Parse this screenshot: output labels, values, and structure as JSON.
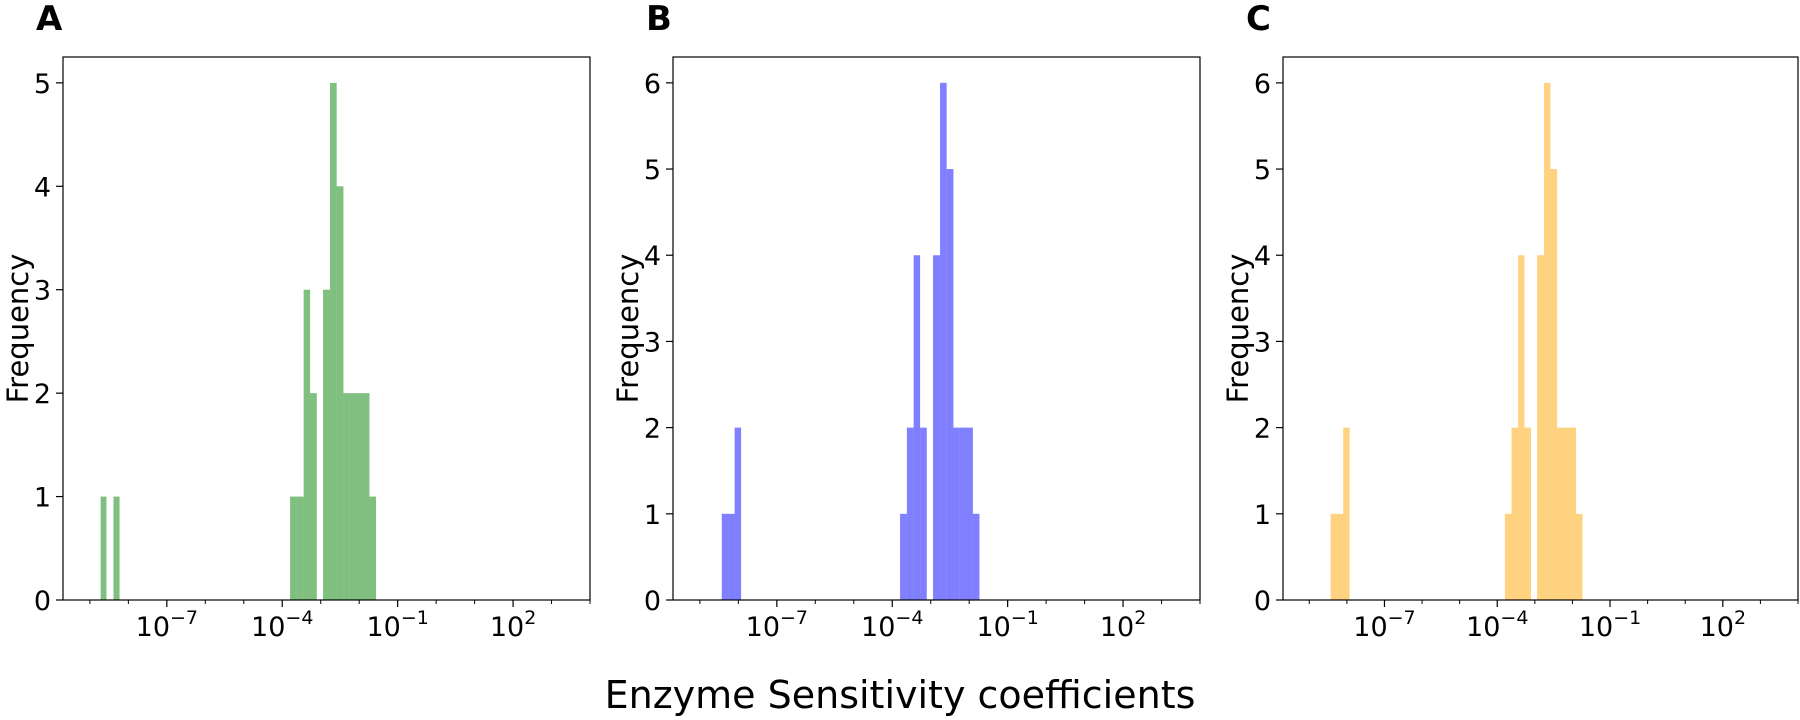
{
  "figure": {
    "supxlabel": "Enzyme Sensitivity coefficients"
  },
  "chart_data": [
    {
      "type": "bar",
      "panel": "A",
      "color": "#008000",
      "opacity": 0.5,
      "xscale": "log",
      "xlim": [
        2e-10,
        10000.0
      ],
      "ylim": [
        0,
        5.25
      ],
      "ylabel": "Frequency",
      "xlabel": "",
      "grid": false,
      "xticks": [
        {
          "base": "10",
          "exp": "−7",
          "value": 1e-07
        },
        {
          "base": "10",
          "exp": "−4",
          "value": 0.0001
        },
        {
          "base": "10",
          "exp": "−1",
          "value": 0.1
        },
        {
          "base": "10",
          "exp": "2",
          "value": 100
        }
      ],
      "yticks": [
        0,
        1,
        2,
        3,
        4,
        5
      ],
      "bins": [
        {
          "x0": 1.9e-09,
          "x1": 2.7e-09,
          "count": 1
        },
        {
          "x0": 4.1e-09,
          "x1": 5.9e-09,
          "count": 1
        },
        {
          "x0": 0.00016,
          "x1": 0.00024,
          "count": 1
        },
        {
          "x0": 0.00024,
          "x1": 0.00036,
          "count": 1
        },
        {
          "x0": 0.00036,
          "x1": 0.00053,
          "count": 3
        },
        {
          "x0": 0.00053,
          "x1": 0.00079,
          "count": 2
        },
        {
          "x0": 0.00115,
          "x1": 0.00175,
          "count": 3
        },
        {
          "x0": 0.00175,
          "x1": 0.0026,
          "count": 5
        },
        {
          "x0": 0.0026,
          "x1": 0.0039,
          "count": 4
        },
        {
          "x0": 0.0039,
          "x1": 0.0057,
          "count": 2
        },
        {
          "x0": 0.0057,
          "x1": 0.0085,
          "count": 2
        },
        {
          "x0": 0.0085,
          "x1": 0.0125,
          "count": 2
        },
        {
          "x0": 0.0125,
          "x1": 0.0185,
          "count": 2
        },
        {
          "x0": 0.0185,
          "x1": 0.0275,
          "count": 1
        }
      ]
    },
    {
      "type": "bar",
      "panel": "B",
      "color": "#0000ff",
      "opacity": 0.5,
      "xscale": "log",
      "xlim": [
        2e-10,
        10000.0
      ],
      "ylim": [
        0,
        6.3
      ],
      "ylabel": "Frequency",
      "xlabel": "",
      "grid": false,
      "xticks": [
        {
          "base": "10",
          "exp": "−7",
          "value": 1e-07
        },
        {
          "base": "10",
          "exp": "−4",
          "value": 0.0001
        },
        {
          "base": "10",
          "exp": "−1",
          "value": 0.1
        },
        {
          "base": "10",
          "exp": "2",
          "value": 100
        }
      ],
      "yticks": [
        0,
        1,
        2,
        3,
        4,
        5,
        6
      ],
      "bins": [
        {
          "x0": 3.7e-09,
          "x1": 5.4e-09,
          "count": 1
        },
        {
          "x0": 5.4e-09,
          "x1": 8e-09,
          "count": 1
        },
        {
          "x0": 8e-09,
          "x1": 1.18e-08,
          "count": 2
        },
        {
          "x0": 0.00016,
          "x1": 0.00024,
          "count": 1
        },
        {
          "x0": 0.00024,
          "x1": 0.00036,
          "count": 2
        },
        {
          "x0": 0.00036,
          "x1": 0.00053,
          "count": 4
        },
        {
          "x0": 0.00053,
          "x1": 0.00079,
          "count": 2
        },
        {
          "x0": 0.00115,
          "x1": 0.00175,
          "count": 4
        },
        {
          "x0": 0.00175,
          "x1": 0.0026,
          "count": 6
        },
        {
          "x0": 0.0026,
          "x1": 0.0039,
          "count": 5
        },
        {
          "x0": 0.0039,
          "x1": 0.0057,
          "count": 2
        },
        {
          "x0": 0.0057,
          "x1": 0.0085,
          "count": 2
        },
        {
          "x0": 0.0085,
          "x1": 0.0125,
          "count": 2
        },
        {
          "x0": 0.0125,
          "x1": 0.0185,
          "count": 1
        }
      ]
    },
    {
      "type": "bar",
      "panel": "C",
      "color": "#ffa500",
      "opacity": 0.5,
      "xscale": "log",
      "xlim": [
        2e-10,
        10000.0
      ],
      "ylim": [
        0,
        6.3
      ],
      "ylabel": "Frequency",
      "xlabel": "",
      "grid": false,
      "xticks": [
        {
          "base": "10",
          "exp": "−7",
          "value": 1e-07
        },
        {
          "base": "10",
          "exp": "−4",
          "value": 0.0001
        },
        {
          "base": "10",
          "exp": "−1",
          "value": 0.1
        },
        {
          "base": "10",
          "exp": "2",
          "value": 100
        }
      ],
      "yticks": [
        0,
        1,
        2,
        3,
        4,
        5,
        6
      ],
      "bins": [
        {
          "x0": 3.7e-09,
          "x1": 5.4e-09,
          "count": 1
        },
        {
          "x0": 5.4e-09,
          "x1": 8e-09,
          "count": 1
        },
        {
          "x0": 8e-09,
          "x1": 1.18e-08,
          "count": 2
        },
        {
          "x0": 0.00016,
          "x1": 0.00024,
          "count": 1
        },
        {
          "x0": 0.00024,
          "x1": 0.00036,
          "count": 2
        },
        {
          "x0": 0.00036,
          "x1": 0.00053,
          "count": 4
        },
        {
          "x0": 0.00053,
          "x1": 0.00079,
          "count": 2
        },
        {
          "x0": 0.00115,
          "x1": 0.00175,
          "count": 4
        },
        {
          "x0": 0.00175,
          "x1": 0.0026,
          "count": 6
        },
        {
          "x0": 0.0026,
          "x1": 0.0039,
          "count": 5
        },
        {
          "x0": 0.0039,
          "x1": 0.0057,
          "count": 2
        },
        {
          "x0": 0.0057,
          "x1": 0.0085,
          "count": 2
        },
        {
          "x0": 0.0085,
          "x1": 0.0125,
          "count": 2
        },
        {
          "x0": 0.0125,
          "x1": 0.0185,
          "count": 1
        }
      ]
    }
  ]
}
